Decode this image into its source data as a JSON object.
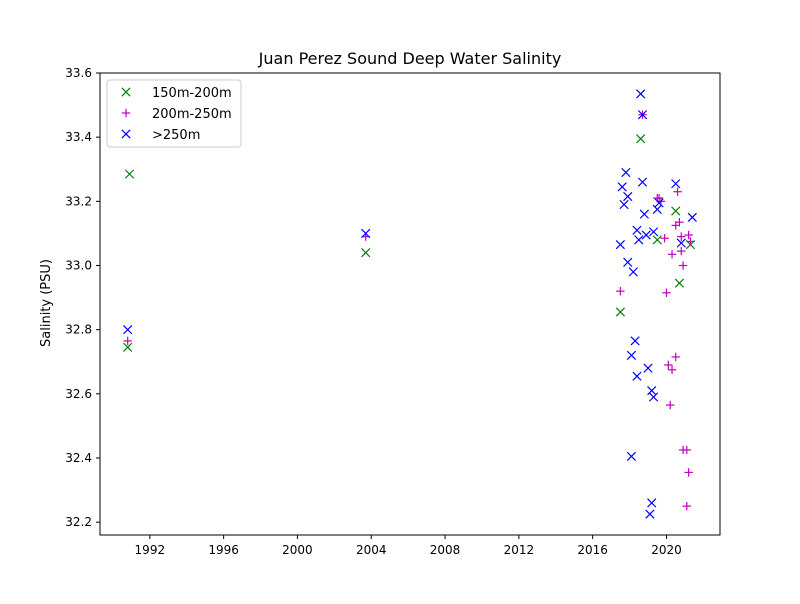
{
  "chart_data": {
    "type": "scatter",
    "title": "Juan Perez Sound Deep Water Salinity",
    "xlabel": "",
    "ylabel": "Salinity (PSU)",
    "xlim": [
      1989.3,
      2022.9
    ],
    "ylim": [
      32.16,
      33.6
    ],
    "x_ticks": [
      1992,
      1996,
      2000,
      2004,
      2008,
      2012,
      2016,
      2020
    ],
    "y_ticks": [
      32.2,
      32.4,
      32.6,
      32.8,
      33.0,
      33.2,
      33.4,
      33.6
    ],
    "x_tick_labels": [
      "1992",
      "1996",
      "2000",
      "2004",
      "2008",
      "2012",
      "2016",
      "2020"
    ],
    "y_tick_labels": [
      "32.2",
      "32.4",
      "32.6",
      "32.8",
      "33.0",
      "33.2",
      "33.4",
      "33.6"
    ],
    "grid": false,
    "legend_position": "top-left",
    "series": [
      {
        "name": "150m-200m",
        "marker": "x",
        "color": "#008000",
        "points": [
          [
            1990.8,
            32.745
          ],
          [
            1990.9,
            33.285
          ],
          [
            2003.7,
            33.04
          ],
          [
            2017.5,
            32.855
          ],
          [
            2018.6,
            33.395
          ],
          [
            2019.5,
            33.08
          ],
          [
            2020.5,
            33.17
          ],
          [
            2020.7,
            32.945
          ],
          [
            2021.3,
            33.065
          ]
        ]
      },
      {
        "name": "200m-250m",
        "marker": "+",
        "color": "#bf00bf",
        "points": [
          [
            1990.8,
            32.765
          ],
          [
            2003.7,
            33.09
          ],
          [
            2017.5,
            32.92
          ],
          [
            2018.7,
            33.47
          ],
          [
            2019.5,
            33.21
          ],
          [
            2019.6,
            33.21
          ],
          [
            2019.7,
            33.2
          ],
          [
            2019.9,
            33.085
          ],
          [
            2020.0,
            32.915
          ],
          [
            2020.1,
            32.69
          ],
          [
            2020.2,
            32.565
          ],
          [
            2020.3,
            32.675
          ],
          [
            2020.3,
            33.035
          ],
          [
            2020.5,
            32.715
          ],
          [
            2020.5,
            33.125
          ],
          [
            2020.6,
            33.23
          ],
          [
            2020.7,
            33.135
          ],
          [
            2020.8,
            33.045
          ],
          [
            2020.8,
            33.09
          ],
          [
            2020.9,
            33.0
          ],
          [
            2020.9,
            32.425
          ],
          [
            2021.1,
            32.425
          ],
          [
            2021.1,
            32.25
          ],
          [
            2021.2,
            32.355
          ],
          [
            2021.2,
            33.095
          ],
          [
            2021.3,
            33.075
          ]
        ]
      },
      {
        "name": ">250m",
        "marker": "x",
        "color": "#0000ff",
        "points": [
          [
            1990.8,
            32.8
          ],
          [
            2003.7,
            33.1
          ],
          [
            2017.5,
            33.065
          ],
          [
            2017.6,
            33.245
          ],
          [
            2017.7,
            33.19
          ],
          [
            2017.8,
            33.29
          ],
          [
            2017.9,
            33.215
          ],
          [
            2017.9,
            33.01
          ],
          [
            2018.1,
            32.72
          ],
          [
            2018.1,
            32.405
          ],
          [
            2018.2,
            32.98
          ],
          [
            2018.3,
            32.765
          ],
          [
            2018.4,
            32.655
          ],
          [
            2018.4,
            33.11
          ],
          [
            2018.5,
            33.08
          ],
          [
            2018.6,
            33.535
          ],
          [
            2018.7,
            33.47
          ],
          [
            2018.7,
            33.26
          ],
          [
            2018.8,
            33.16
          ],
          [
            2018.9,
            33.095
          ],
          [
            2019.0,
            32.68
          ],
          [
            2019.1,
            32.225
          ],
          [
            2019.2,
            32.26
          ],
          [
            2019.2,
            32.61
          ],
          [
            2019.3,
            32.59
          ],
          [
            2019.3,
            33.105
          ],
          [
            2019.5,
            33.175
          ],
          [
            2019.6,
            33.195
          ],
          [
            2020.5,
            33.255
          ],
          [
            2020.8,
            33.07
          ],
          [
            2021.4,
            33.15
          ]
        ]
      }
    ]
  }
}
